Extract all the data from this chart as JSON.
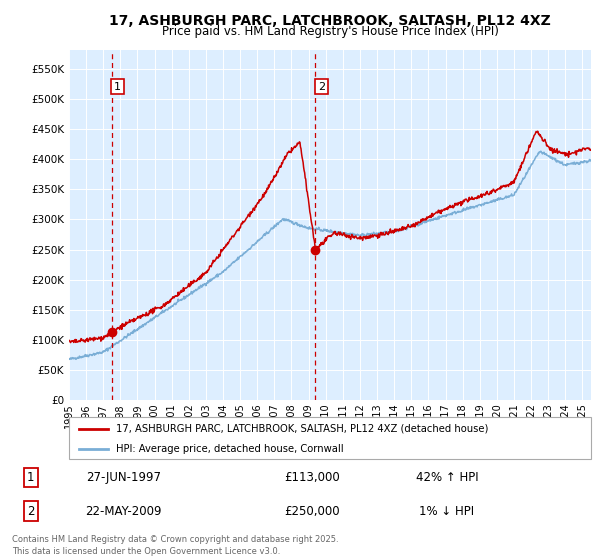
{
  "title_line1": "17, ASHBURGH PARC, LATCHBROOK, SALTASH, PL12 4XZ",
  "title_line2": "Price paid vs. HM Land Registry's House Price Index (HPI)",
  "legend_label_red": "17, ASHBURGH PARC, LATCHBROOK, SALTASH, PL12 4XZ (detached house)",
  "legend_label_blue": "HPI: Average price, detached house, Cornwall",
  "annotation1_label": "1",
  "annotation1_date": "27-JUN-1997",
  "annotation1_price": "£113,000",
  "annotation1_hpi": "42% ↑ HPI",
  "annotation2_label": "2",
  "annotation2_date": "22-MAY-2009",
  "annotation2_price": "£250,000",
  "annotation2_hpi": "1% ↓ HPI",
  "footer": "Contains HM Land Registry data © Crown copyright and database right 2025.\nThis data is licensed under the Open Government Licence v3.0.",
  "ylim": [
    0,
    580000
  ],
  "yticks": [
    0,
    50000,
    100000,
    150000,
    200000,
    250000,
    300000,
    350000,
    400000,
    450000,
    500000,
    550000
  ],
  "ytick_labels": [
    "£0",
    "£50K",
    "£100K",
    "£150K",
    "£200K",
    "£250K",
    "£300K",
    "£350K",
    "£400K",
    "£450K",
    "£500K",
    "£550K"
  ],
  "xlim_start": 1995.0,
  "xlim_end": 2025.5,
  "marker1_x": 1997.49,
  "marker1_y": 113000,
  "marker2_x": 2009.39,
  "marker2_y": 250000,
  "color_red": "#cc0000",
  "color_blue": "#7aaed6",
  "color_background": "#ddeeff",
  "color_grid": "#ffffff",
  "color_annotation_box": "#cc0000",
  "color_footer": "#666666"
}
